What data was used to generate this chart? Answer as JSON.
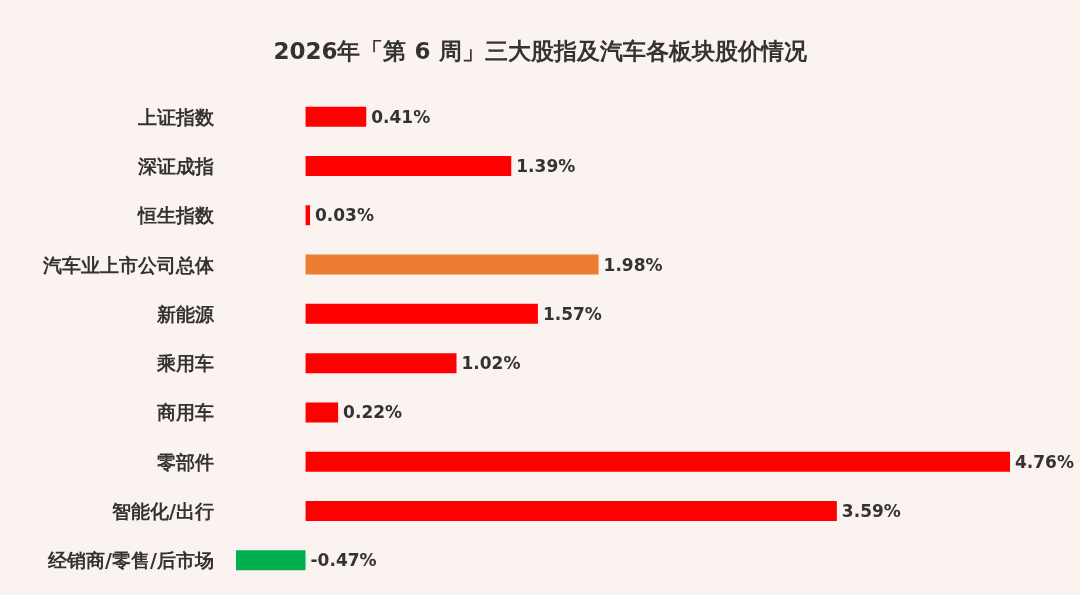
{
  "chart_data": {
    "type": "bar",
    "orientation": "horizontal",
    "title": "2026年「第 6 周」三大股指及汽车各板块股价情况",
    "categories": [
      "上证指数",
      "深证成指",
      "恒生指数",
      "汽车业上市公司总体",
      "新能源",
      "乘用车",
      "商用车",
      "零部件",
      "智能化/出行",
      "经销商/零售/后市场"
    ],
    "values": [
      0.41,
      1.39,
      0.03,
      1.98,
      1.57,
      1.02,
      0.22,
      4.76,
      3.59,
      -0.47
    ],
    "colors": [
      "#ff0000",
      "#ff0000",
      "#ff0000",
      "#ed7d31",
      "#ff0000",
      "#ff0000",
      "#ff0000",
      "#ff0000",
      "#ff0000",
      "#00b050"
    ],
    "value_labels": [
      "0.41%",
      "1.39%",
      "0.03%",
      "1.98%",
      "1.57%",
      "1.02%",
      "0.22%",
      "4.76%",
      "3.59%",
      "-0.47%"
    ],
    "tick_labels": "y",
    "grid": false
  }
}
